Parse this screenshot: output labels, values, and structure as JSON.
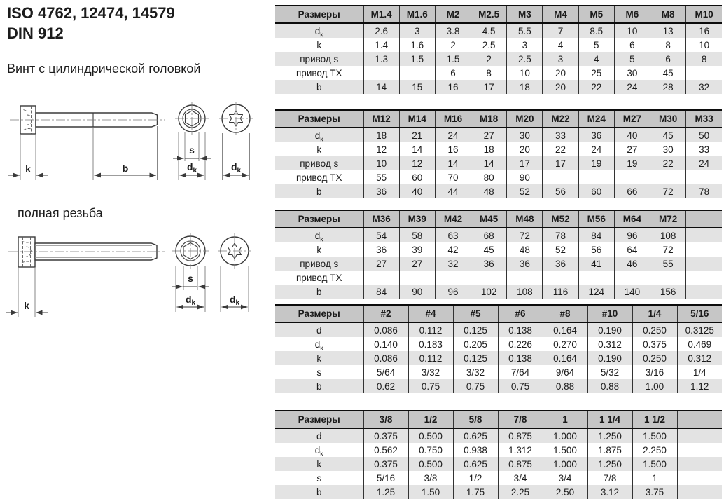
{
  "header": {
    "title_line1": "ISO 4762, 12474, 14579",
    "title_line2": "DIN 912",
    "subtitle": "Винт с цилиндрической головкой",
    "full_thread_label": "полная резьба"
  },
  "drawing": {
    "labels": {
      "k": "k",
      "b": "b",
      "s": "s",
      "dk_base": "d",
      "dk_sub": "k"
    }
  },
  "colors": {
    "table_header_bg": "#c6c6c6",
    "row_stripe_bg": "#e3e3e3",
    "border_dark": "#0c0c0c"
  },
  "tables": [
    {
      "name": "metric-m1-4-to-m10",
      "header": [
        "Размеры",
        "M1.4",
        "M1.6",
        "M2",
        "M2.5",
        "M3",
        "M4",
        "M5",
        "M6",
        "M8",
        "M10"
      ],
      "rows": [
        {
          "label": "d_k",
          "values": [
            "2.6",
            "3",
            "3.8",
            "4.5",
            "5.5",
            "7",
            "8.5",
            "10",
            "13",
            "16"
          ]
        },
        {
          "label": "k",
          "values": [
            "1.4",
            "1.6",
            "2",
            "2.5",
            "3",
            "4",
            "5",
            "6",
            "8",
            "10"
          ]
        },
        {
          "label": "привод s",
          "values": [
            "1.3",
            "1.5",
            "1.5",
            "2",
            "2.5",
            "3",
            "4",
            "5",
            "6",
            "8"
          ]
        },
        {
          "label": "привод TX",
          "values": [
            "",
            "",
            "6",
            "8",
            "10",
            "20",
            "25",
            "30",
            "45",
            ""
          ]
        },
        {
          "label": "b",
          "values": [
            "14",
            "15",
            "16",
            "17",
            "18",
            "20",
            "22",
            "24",
            "28",
            "32"
          ]
        }
      ]
    },
    {
      "name": "metric-m12-to-m33",
      "header": [
        "Размеры",
        "M12",
        "M14",
        "M16",
        "M18",
        "M20",
        "M22",
        "M24",
        "M27",
        "M30",
        "M33"
      ],
      "rows": [
        {
          "label": "d_k",
          "values": [
            "18",
            "21",
            "24",
            "27",
            "30",
            "33",
            "36",
            "40",
            "45",
            "50"
          ]
        },
        {
          "label": "k",
          "values": [
            "12",
            "14",
            "16",
            "18",
            "20",
            "22",
            "24",
            "27",
            "30",
            "33"
          ]
        },
        {
          "label": "привод s",
          "values": [
            "10",
            "12",
            "14",
            "14",
            "17",
            "17",
            "19",
            "19",
            "22",
            "24"
          ]
        },
        {
          "label": "привод TX",
          "values": [
            "55",
            "60",
            "70",
            "80",
            "90",
            "",
            "",
            "",
            "",
            ""
          ]
        },
        {
          "label": "b",
          "values": [
            "36",
            "40",
            "44",
            "48",
            "52",
            "56",
            "60",
            "66",
            "72",
            "78"
          ]
        }
      ]
    },
    {
      "name": "metric-m36-to-m72",
      "header": [
        "Размеры",
        "M36",
        "M39",
        "M42",
        "M45",
        "M48",
        "M52",
        "M56",
        "M64",
        "M72",
        ""
      ],
      "rows": [
        {
          "label": "d_k",
          "values": [
            "54",
            "58",
            "63",
            "68",
            "72",
            "78",
            "84",
            "96",
            "108",
            ""
          ]
        },
        {
          "label": "k",
          "values": [
            "36",
            "39",
            "42",
            "45",
            "48",
            "52",
            "56",
            "64",
            "72",
            ""
          ]
        },
        {
          "label": "привод s",
          "values": [
            "27",
            "27",
            "32",
            "36",
            "36",
            "36",
            "41",
            "46",
            "55",
            ""
          ]
        },
        {
          "label": "привод TX",
          "values": [
            "",
            "",
            "",
            "",
            "",
            "",
            "",
            "",
            "",
            ""
          ]
        },
        {
          "label": "b",
          "values": [
            "84",
            "90",
            "96",
            "102",
            "108",
            "116",
            "124",
            "140",
            "156",
            ""
          ]
        }
      ]
    },
    {
      "name": "inch-2-to-5-16",
      "header": [
        "Размеры",
        "#2",
        "#4",
        "#5",
        "#6",
        "#8",
        "#10",
        "1/4",
        "5/16"
      ],
      "rows": [
        {
          "label": "d",
          "values": [
            "0.086",
            "0.112",
            "0.125",
            "0.138",
            "0.164",
            "0.190",
            "0.250",
            "0.3125"
          ]
        },
        {
          "label": "d_k",
          "values": [
            "0.140",
            "0.183",
            "0.205",
            "0.226",
            "0.270",
            "0.312",
            "0.375",
            "0.469"
          ]
        },
        {
          "label": "k",
          "values": [
            "0.086",
            "0.112",
            "0.125",
            "0.138",
            "0.164",
            "0.190",
            "0.250",
            "0.312"
          ]
        },
        {
          "label": "s",
          "values": [
            "5/64",
            "3/32",
            "3/32",
            "7/64",
            "9/64",
            "5/32",
            "3/16",
            "1/4"
          ]
        },
        {
          "label": "b",
          "values": [
            "0.62",
            "0.75",
            "0.75",
            "0.75",
            "0.88",
            "0.88",
            "1.00",
            "1.12"
          ]
        }
      ]
    },
    {
      "name": "inch-3-8-to-1-1-2",
      "header": [
        "Размеры",
        "3/8",
        "1/2",
        "5/8",
        "7/8",
        "1",
        "1 1/4",
        "1 1/2",
        ""
      ],
      "rows": [
        {
          "label": "d",
          "values": [
            "0.375",
            "0.500",
            "0.625",
            "0.875",
            "1.000",
            "1.250",
            "1.500",
            ""
          ]
        },
        {
          "label": "d_k",
          "values": [
            "0.562",
            "0.750",
            "0.938",
            "1.312",
            "1.500",
            "1.875",
            "2.250",
            ""
          ]
        },
        {
          "label": "k",
          "values": [
            "0.375",
            "0.500",
            "0.625",
            "0.875",
            "1.000",
            "1.250",
            "1.500",
            ""
          ]
        },
        {
          "label": "s",
          "values": [
            "5/16",
            "3/8",
            "1/2",
            "3/4",
            "3/4",
            "7/8",
            "1",
            ""
          ]
        },
        {
          "label": "b",
          "values": [
            "1.25",
            "1.50",
            "1.75",
            "2.25",
            "2.50",
            "3.12",
            "3.75",
            ""
          ]
        }
      ]
    }
  ]
}
